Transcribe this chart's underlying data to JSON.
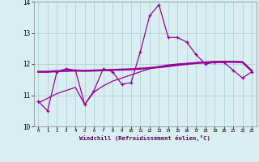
{
  "x": [
    0,
    1,
    2,
    3,
    4,
    5,
    6,
    7,
    8,
    9,
    10,
    11,
    12,
    13,
    14,
    15,
    16,
    17,
    18,
    19,
    20,
    21,
    22,
    23
  ],
  "line1_y": [
    10.8,
    10.5,
    11.75,
    11.85,
    11.8,
    10.7,
    11.15,
    11.85,
    11.75,
    11.35,
    11.4,
    12.4,
    13.55,
    13.9,
    12.85,
    12.85,
    12.7,
    12.3,
    12.0,
    12.05,
    12.05,
    11.8,
    11.55,
    11.75
  ],
  "line2_y": [
    11.75,
    11.75,
    11.77,
    11.78,
    11.79,
    11.78,
    11.79,
    11.8,
    11.81,
    11.82,
    11.83,
    11.85,
    11.87,
    11.9,
    11.93,
    11.97,
    12.0,
    12.03,
    12.05,
    12.07,
    12.07,
    12.07,
    12.06,
    11.78
  ],
  "line3_y": [
    10.75,
    10.9,
    11.05,
    11.15,
    11.25,
    10.7,
    11.1,
    11.3,
    11.45,
    11.55,
    11.65,
    11.75,
    11.85,
    11.92,
    11.97,
    12.0,
    12.02,
    12.04,
    12.05,
    12.06,
    12.07,
    12.07,
    12.06,
    11.78
  ],
  "color": "#990099",
  "background": "#d8eef0",
  "grid_color": "#a8cfd0",
  "xlabel": "Windchill (Refroidissement éolien,°C)",
  "ylim": [
    10,
    14
  ],
  "xlim": [
    -0.5,
    23.5
  ],
  "yticks": [
    10,
    11,
    12,
    13,
    14
  ],
  "xticks": [
    0,
    1,
    2,
    3,
    4,
    5,
    6,
    7,
    8,
    9,
    10,
    11,
    12,
    13,
    14,
    15,
    16,
    17,
    18,
    19,
    20,
    21,
    22,
    23
  ]
}
